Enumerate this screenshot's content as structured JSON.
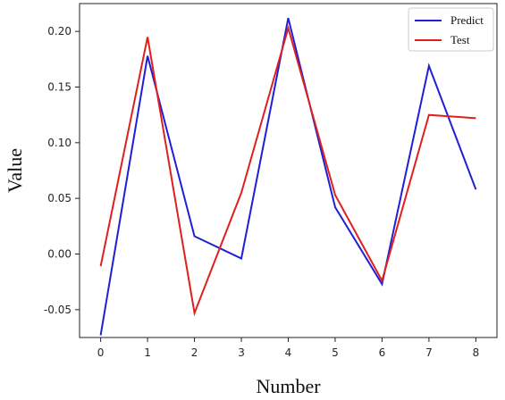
{
  "chart_data": {
    "type": "line",
    "title": "",
    "xlabel": "Number",
    "ylabel": "Value",
    "x": [
      0,
      1,
      2,
      3,
      4,
      5,
      6,
      7,
      8
    ],
    "xlim": [
      -0.45,
      8.45
    ],
    "ylim": [
      -0.075,
      0.225
    ],
    "xticks": [
      0,
      1,
      2,
      3,
      4,
      5,
      6,
      7,
      8
    ],
    "yticks": [
      -0.05,
      0.0,
      0.05,
      0.1,
      0.15,
      0.2
    ],
    "ytick_labels": [
      "-0.05",
      "0.00",
      "0.05",
      "0.10",
      "0.15",
      "0.20"
    ],
    "grid": false,
    "legend_position": "top-right",
    "series": [
      {
        "name": "Predict",
        "color": "#1f1fd6",
        "values": [
          -0.073,
          0.178,
          0.016,
          -0.004,
          0.212,
          0.042,
          -0.027,
          0.169,
          0.058
        ]
      },
      {
        "name": "Test",
        "color": "#e01f1f",
        "values": [
          -0.011,
          0.195,
          -0.053,
          0.055,
          0.203,
          0.053,
          -0.024,
          0.125,
          0.122
        ]
      }
    ]
  }
}
